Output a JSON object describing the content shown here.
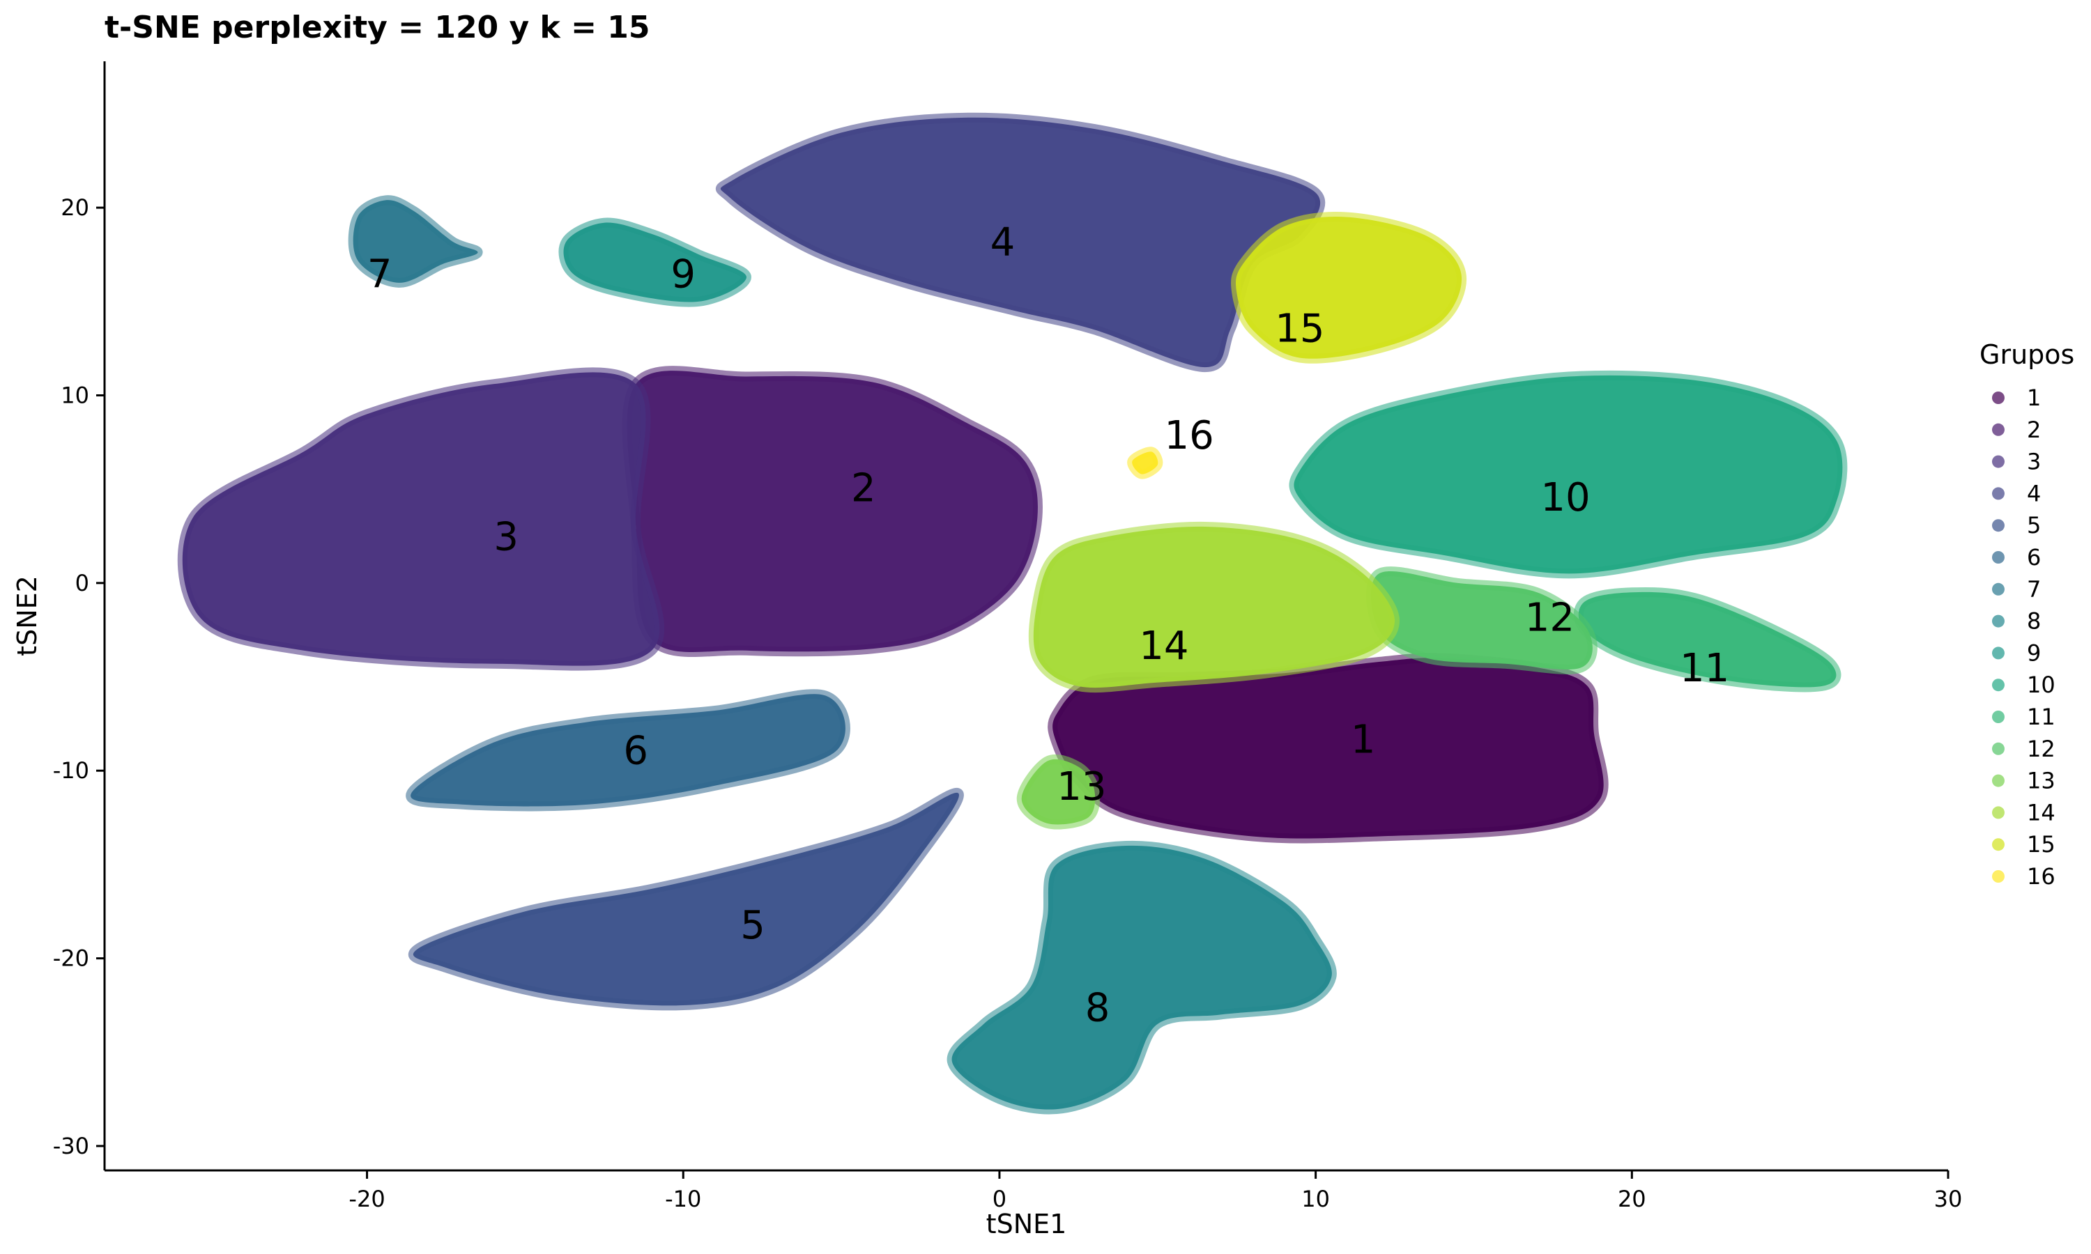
{
  "chart_data": {
    "type": "scatter",
    "title": "t-SNE perplexity = 120 y k = 15",
    "xlabel": "tSNE1",
    "ylabel": "tSNE2",
    "xlim": [
      -28.3,
      30
    ],
    "ylim": [
      -31.3,
      27.8
    ],
    "xticks": [
      -20,
      -10,
      0,
      10,
      20,
      30
    ],
    "yticks": [
      -30,
      -20,
      -10,
      0,
      10,
      20
    ],
    "grid": false,
    "legend": {
      "title": "Grupos",
      "position": "right"
    },
    "clusters": [
      {
        "name": "1",
        "color": "#440154",
        "label_pos": [
          11.5,
          -8.3
        ],
        "points": [
          [
            1.8,
            -7.0
          ],
          [
            3,
            -5.2
          ],
          [
            6,
            -5.0
          ],
          [
            9,
            -4.8
          ],
          [
            12,
            -4.2
          ],
          [
            14,
            -4.0
          ],
          [
            17,
            -4.5
          ],
          [
            18.6,
            -5.5
          ],
          [
            18.8,
            -8.0
          ],
          [
            19,
            -11.5
          ],
          [
            17,
            -13.0
          ],
          [
            12,
            -13.5
          ],
          [
            8,
            -13.5
          ],
          [
            4,
            -12.3
          ],
          [
            2.5,
            -10.5
          ],
          [
            1.8,
            -8.5
          ]
        ]
      },
      {
        "name": "2",
        "color": "#481A6C",
        "label_pos": [
          -4.3,
          5.1
        ],
        "points": [
          [
            -11.5,
            10.6
          ],
          [
            -8,
            11.0
          ],
          [
            -4,
            10.7
          ],
          [
            -1,
            8.5
          ],
          [
            0.8,
            6.5
          ],
          [
            1.2,
            3.5
          ],
          [
            0.5,
            0
          ],
          [
            -1.5,
            -2.5
          ],
          [
            -4,
            -3.5
          ],
          [
            -8,
            -3.6
          ],
          [
            -11,
            -3.0
          ],
          [
            -11.5,
            3
          ]
        ]
      },
      {
        "name": "3",
        "color": "#472F7D",
        "label_pos": [
          -15.6,
          2.5
        ],
        "points": [
          [
            -11.5,
            10.6
          ],
          [
            -16,
            10.6
          ],
          [
            -20,
            9.0
          ],
          [
            -22,
            7.0
          ],
          [
            -25.5,
            3.5
          ],
          [
            -25.3,
            -1.8
          ],
          [
            -22,
            -3.6
          ],
          [
            -16,
            -4.3
          ],
          [
            -11,
            -3.6
          ],
          [
            -11.5,
            3
          ]
        ]
      },
      {
        "name": "4",
        "color": "#414487",
        "label_pos": [
          0.1,
          18.2
        ],
        "points": [
          [
            -8.4,
            21.5
          ],
          [
            -5,
            24.0
          ],
          [
            -1,
            24.8
          ],
          [
            3,
            24.2
          ],
          [
            7,
            22.5
          ],
          [
            10,
            20.8
          ],
          [
            9.5,
            18.5
          ],
          [
            8.0,
            17.0
          ],
          [
            7.3,
            13.5
          ],
          [
            6.5,
            11.5
          ],
          [
            3,
            13.5
          ],
          [
            0.5,
            14.5
          ],
          [
            -3,
            16.0
          ],
          [
            -6,
            17.8
          ],
          [
            -8.5,
            20.5
          ]
        ]
      },
      {
        "name": "5",
        "color": "#3B528B",
        "label_pos": [
          -7.8,
          -18.2
        ],
        "points": [
          [
            -18.4,
            -19.5
          ],
          [
            -15,
            -17.5
          ],
          [
            -11,
            -16.3
          ],
          [
            -7,
            -14.7
          ],
          [
            -3.5,
            -13.0
          ],
          [
            -1.3,
            -11.2
          ],
          [
            -2.5,
            -14.5
          ],
          [
            -4.5,
            -18.5
          ],
          [
            -7,
            -21.5
          ],
          [
            -10,
            -22.5
          ],
          [
            -14,
            -22.0
          ],
          [
            -17.5,
            -20.5
          ]
        ]
      },
      {
        "name": "6",
        "color": "#31688E",
        "label_pos": [
          -11.5,
          -8.9
        ],
        "points": [
          [
            -18.6,
            -11.2
          ],
          [
            -16,
            -8.5
          ],
          [
            -13,
            -7.4
          ],
          [
            -9,
            -6.8
          ],
          [
            -5.5,
            -6.0
          ],
          [
            -5.2,
            -9.0
          ],
          [
            -9,
            -10.8
          ],
          [
            -13,
            -11.8
          ],
          [
            -17,
            -11.8
          ]
        ]
      },
      {
        "name": "7",
        "color": "#2A788E",
        "label_pos": [
          -19.6,
          16.5
        ],
        "points": [
          [
            -20.3,
            19.5
          ],
          [
            -19.4,
            20.4
          ],
          [
            -18.5,
            19.8
          ],
          [
            -17.3,
            18.2
          ],
          [
            -16.5,
            17.6
          ],
          [
            -17.6,
            17.0
          ],
          [
            -19,
            16.0
          ],
          [
            -20.3,
            17.2
          ]
        ]
      },
      {
        "name": "8",
        "color": "#23888E",
        "label_pos": [
          3.1,
          -22.6
        ],
        "points": [
          [
            1.8,
            -15.0
          ],
          [
            4,
            -14.0
          ],
          [
            6.5,
            -14.7
          ],
          [
            9.0,
            -17.0
          ],
          [
            10,
            -19.0
          ],
          [
            10.5,
            -21.0
          ],
          [
            9.5,
            -22.5
          ],
          [
            7,
            -23.0
          ],
          [
            5,
            -23.5
          ],
          [
            4.0,
            -26.5
          ],
          [
            2,
            -28.0
          ],
          [
            0,
            -27.5
          ],
          [
            -1.5,
            -25.5
          ],
          [
            -0.5,
            -23.5
          ],
          [
            1.0,
            -21.5
          ],
          [
            1.5,
            -18.0
          ]
        ]
      },
      {
        "name": "9",
        "color": "#1F988B",
        "label_pos": [
          -10,
          16.5
        ],
        "points": [
          [
            -13.7,
            18.2
          ],
          [
            -12.5,
            19.2
          ],
          [
            -11,
            18.6
          ],
          [
            -9.5,
            17.5
          ],
          [
            -8,
            16.3
          ],
          [
            -9.5,
            15.0
          ],
          [
            -12,
            15.5
          ],
          [
            -13.5,
            16.5
          ]
        ]
      },
      {
        "name": "10",
        "color": "#22A884",
        "label_pos": [
          17.9,
          4.6
        ],
        "points": [
          [
            9.5,
            6.0
          ],
          [
            11,
            8.5
          ],
          [
            14,
            10.0
          ],
          [
            18,
            11.0
          ],
          [
            22,
            10.8
          ],
          [
            25,
            9.5
          ],
          [
            26.5,
            7.5
          ],
          [
            26.5,
            4.5
          ],
          [
            25.5,
            2.5
          ],
          [
            22,
            1.5
          ],
          [
            18,
            0.5
          ],
          [
            14,
            1.5
          ],
          [
            11,
            2.5
          ],
          [
            9.5,
            4.5
          ]
        ]
      },
      {
        "name": "11",
        "color": "#35B779",
        "label_pos": [
          22.3,
          -4.5
        ],
        "points": [
          [
            18.5,
            -1.0
          ],
          [
            20,
            -0.5
          ],
          [
            22,
            -0.8
          ],
          [
            24.5,
            -2.5
          ],
          [
            26.3,
            -4.3
          ],
          [
            26,
            -5.5
          ],
          [
            23,
            -5.2
          ],
          [
            20,
            -4.0
          ],
          [
            18.5,
            -2.5
          ]
        ]
      },
      {
        "name": "12",
        "color": "#54C568",
        "label_pos": [
          17.4,
          -1.8
        ],
        "points": [
          [
            12,
            0.5
          ],
          [
            14.5,
            0.0
          ],
          [
            17,
            -0.5
          ],
          [
            18.6,
            -2.5
          ],
          [
            18.4,
            -4.5
          ],
          [
            16,
            -4.3
          ],
          [
            13.5,
            -4.0
          ],
          [
            12,
            -2.5
          ]
        ]
      },
      {
        "name": "13",
        "color": "#7AD151",
        "label_pos": [
          2.6,
          -10.8
        ],
        "points": [
          [
            0.7,
            -11.5
          ],
          [
            1.5,
            -9.5
          ],
          [
            2.5,
            -9.8
          ],
          [
            3.0,
            -11.0
          ],
          [
            2.8,
            -12.5
          ],
          [
            1.5,
            -12.8
          ]
        ]
      },
      {
        "name": "14",
        "color": "#A5DB36",
        "label_pos": [
          5.2,
          -3.3
        ],
        "points": [
          [
            1.2,
            -1.0
          ],
          [
            1.8,
            1.5
          ],
          [
            3.5,
            2.5
          ],
          [
            6.5,
            3.0
          ],
          [
            9.5,
            2.3
          ],
          [
            11.5,
            0.5
          ],
          [
            12.5,
            -2.0
          ],
          [
            11.5,
            -3.8
          ],
          [
            8.5,
            -4.8
          ],
          [
            5,
            -5.3
          ],
          [
            2.5,
            -5.5
          ],
          [
            1.2,
            -4.0
          ]
        ]
      },
      {
        "name": "15",
        "color": "#D2E21B",
        "label_pos": [
          9.5,
          13.6
        ],
        "points": [
          [
            7.7,
            17.0
          ],
          [
            9.0,
            19.0
          ],
          [
            11.0,
            19.5
          ],
          [
            13.5,
            18.5
          ],
          [
            14.6,
            16.5
          ],
          [
            14.0,
            14.0
          ],
          [
            12.0,
            12.5
          ],
          [
            9.5,
            12.0
          ],
          [
            8.0,
            13.5
          ],
          [
            7.5,
            15.5
          ]
        ]
      },
      {
        "name": "16",
        "color": "#FDE725",
        "label_pos": [
          6.0,
          7.9
        ],
        "points": [
          [
            4.2,
            6.5
          ],
          [
            4.8,
            7.0
          ],
          [
            5.0,
            6.3
          ],
          [
            4.5,
            5.8
          ]
        ]
      }
    ]
  }
}
